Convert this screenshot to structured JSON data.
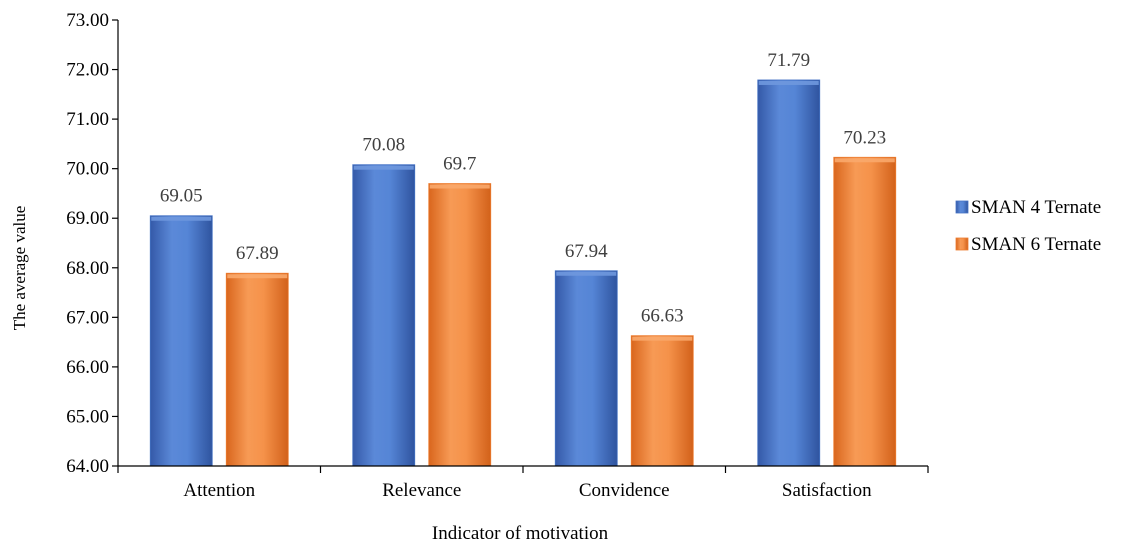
{
  "chart_data": {
    "type": "bar",
    "title": "",
    "xlabel": "Indicator of motivation",
    "ylabel": "The average value",
    "ylim": [
      64,
      73
    ],
    "y_ticks": [
      "64.00",
      "65.00",
      "66.00",
      "67.00",
      "68.00",
      "69.00",
      "70.00",
      "71.00",
      "72.00",
      "73.00"
    ],
    "y_tick_values": [
      64,
      65,
      66,
      67,
      68,
      69,
      70,
      71,
      72,
      73
    ],
    "categories": [
      "Attention",
      "Relevance",
      "Convidence",
      "Satisfaction"
    ],
    "series": [
      {
        "name": "SMAN 4 Ternate",
        "values": [
          69.05,
          70.08,
          67.94,
          71.79
        ],
        "labels": [
          "69.05",
          "70.08",
          "67.94",
          "71.79"
        ],
        "color": "#4472c4"
      },
      {
        "name": "SMAN 6 Ternate",
        "values": [
          67.89,
          69.7,
          66.63,
          70.23
        ],
        "labels": [
          "67.89",
          "69.7",
          "66.63",
          "70.23"
        ],
        "color": "#ed7d31"
      }
    ],
    "legend_position": "right",
    "grid": false
  }
}
